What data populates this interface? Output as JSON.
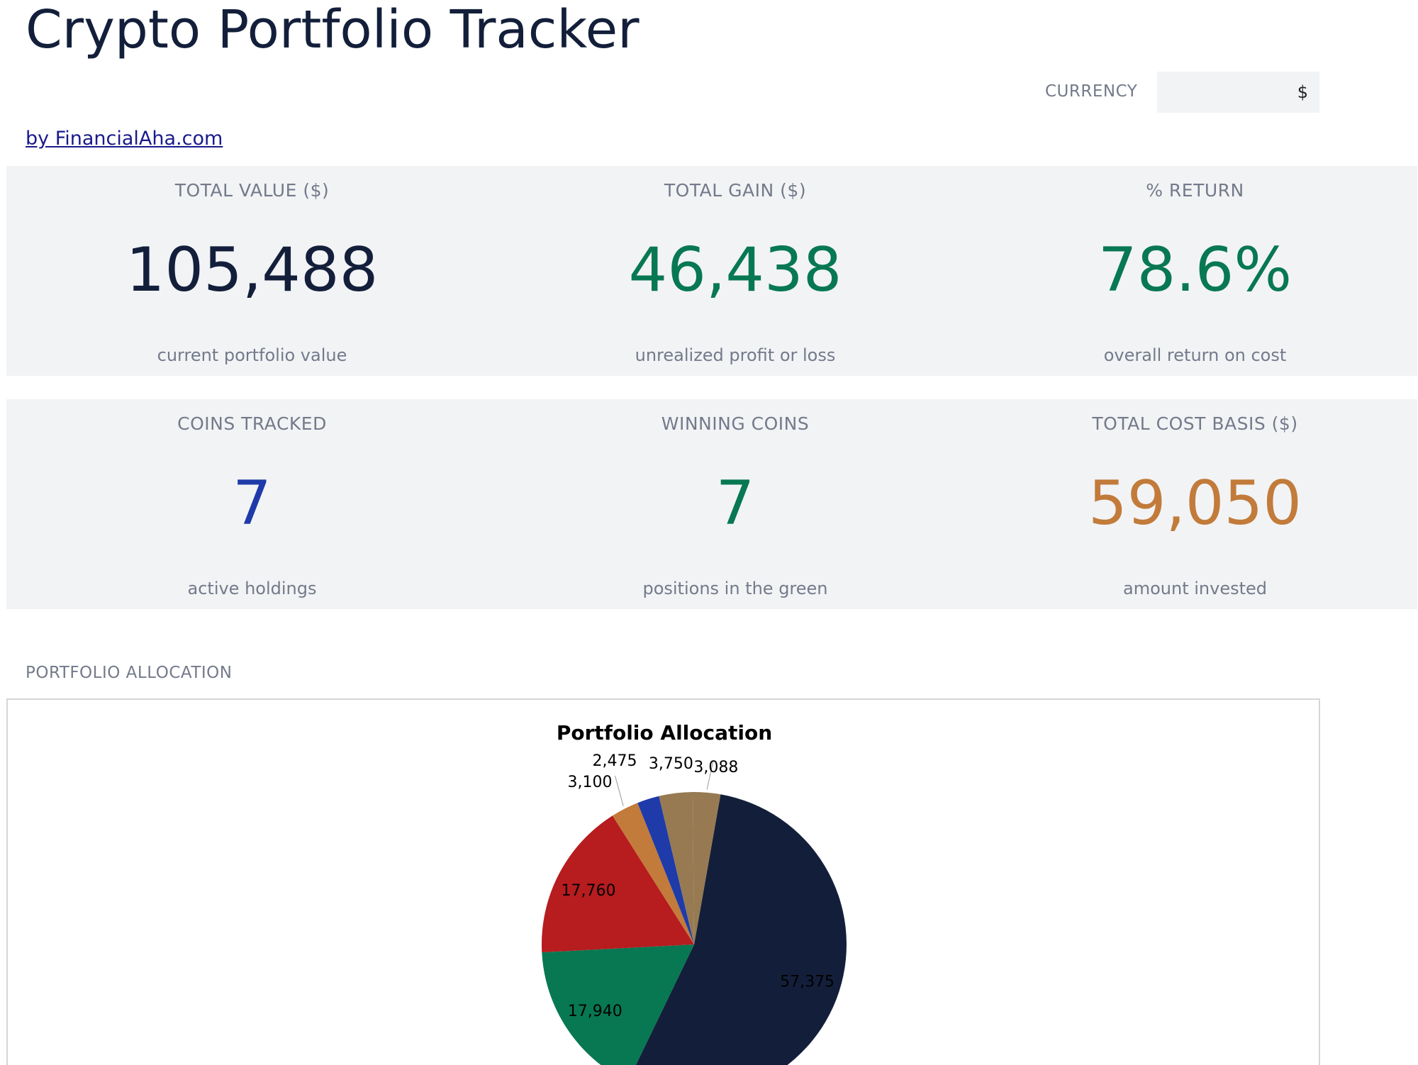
{
  "header": {
    "title": "Crypto Portfolio Tracker",
    "byline": "by FinancialAha.com",
    "currency_label": "CURRENCY",
    "currency_value": "$"
  },
  "kpis_row1": [
    {
      "label": "TOTAL VALUE ($)",
      "value": "105,488",
      "sub": "current portfolio value",
      "color": "#131f3a"
    },
    {
      "label": "TOTAL GAIN ($)",
      "value": "46,438",
      "sub": "unrealized profit or loss",
      "color": "#077852"
    },
    {
      "label": "% RETURN",
      "value": "78.6%",
      "sub": "overall return on cost",
      "color": "#077852"
    }
  ],
  "kpis_row2": [
    {
      "label": "COINS TRACKED",
      "value": "7",
      "sub": "active holdings",
      "color": "#1f3ba9"
    },
    {
      "label": "WINNING COINS",
      "value": "7",
      "sub": "positions in the green",
      "color": "#077852"
    },
    {
      "label": "TOTAL COST BASIS ($)",
      "value": "59,050",
      "sub": "amount invested",
      "color": "#c27b3a"
    }
  ],
  "allocation": {
    "section_label": "PORTFOLIO ALLOCATION"
  },
  "chart_data": {
    "type": "pie",
    "title": "Portfolio Allocation",
    "values": [
      57375,
      17940,
      17760,
      3100,
      2475,
      3750,
      3088
    ],
    "labels": [
      "57,375",
      "17,940",
      "17,760",
      "3,100",
      "2,475",
      "3,750",
      "3,088"
    ],
    "colors": [
      "#131f3a",
      "#077852",
      "#b71c1e",
      "#c27b3a",
      "#1f3ba9",
      "#977a52",
      "#977a52"
    ]
  }
}
